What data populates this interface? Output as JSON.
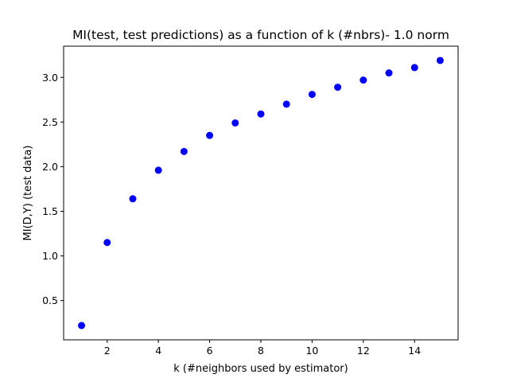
{
  "chart_data": {
    "type": "scatter",
    "title": "MI(test, test predictions) as a function of k (#nbrs)- 1.0 norm",
    "xlabel": "k (#neighbors used by estimator)",
    "ylabel": "MI(D,Y)  (test data)",
    "x": [
      1,
      2,
      3,
      4,
      5,
      6,
      7,
      8,
      9,
      10,
      11,
      12,
      13,
      14,
      15
    ],
    "series": [
      {
        "values": [
          0.22,
          1.15,
          1.64,
          1.96,
          2.17,
          2.35,
          2.49,
          2.59,
          2.7,
          2.81,
          2.89,
          2.97,
          3.05,
          3.11,
          3.19
        ],
        "color": "#0000ff"
      }
    ],
    "xlim": [
      0.3,
      15.7
    ],
    "ylim": [
      0.06,
      3.35
    ],
    "xticks": [
      2,
      4,
      6,
      8,
      10,
      12,
      14
    ],
    "xtick_labels": [
      "2",
      "4",
      "6",
      "8",
      "10",
      "12",
      "14"
    ],
    "yticks": [
      0.5,
      1.0,
      1.5,
      2.0,
      2.5,
      3.0
    ],
    "ytick_labels": [
      "0.5",
      "1.0",
      "1.5",
      "2.0",
      "2.5",
      "3.0"
    ],
    "grid": false,
    "legend": "none"
  }
}
